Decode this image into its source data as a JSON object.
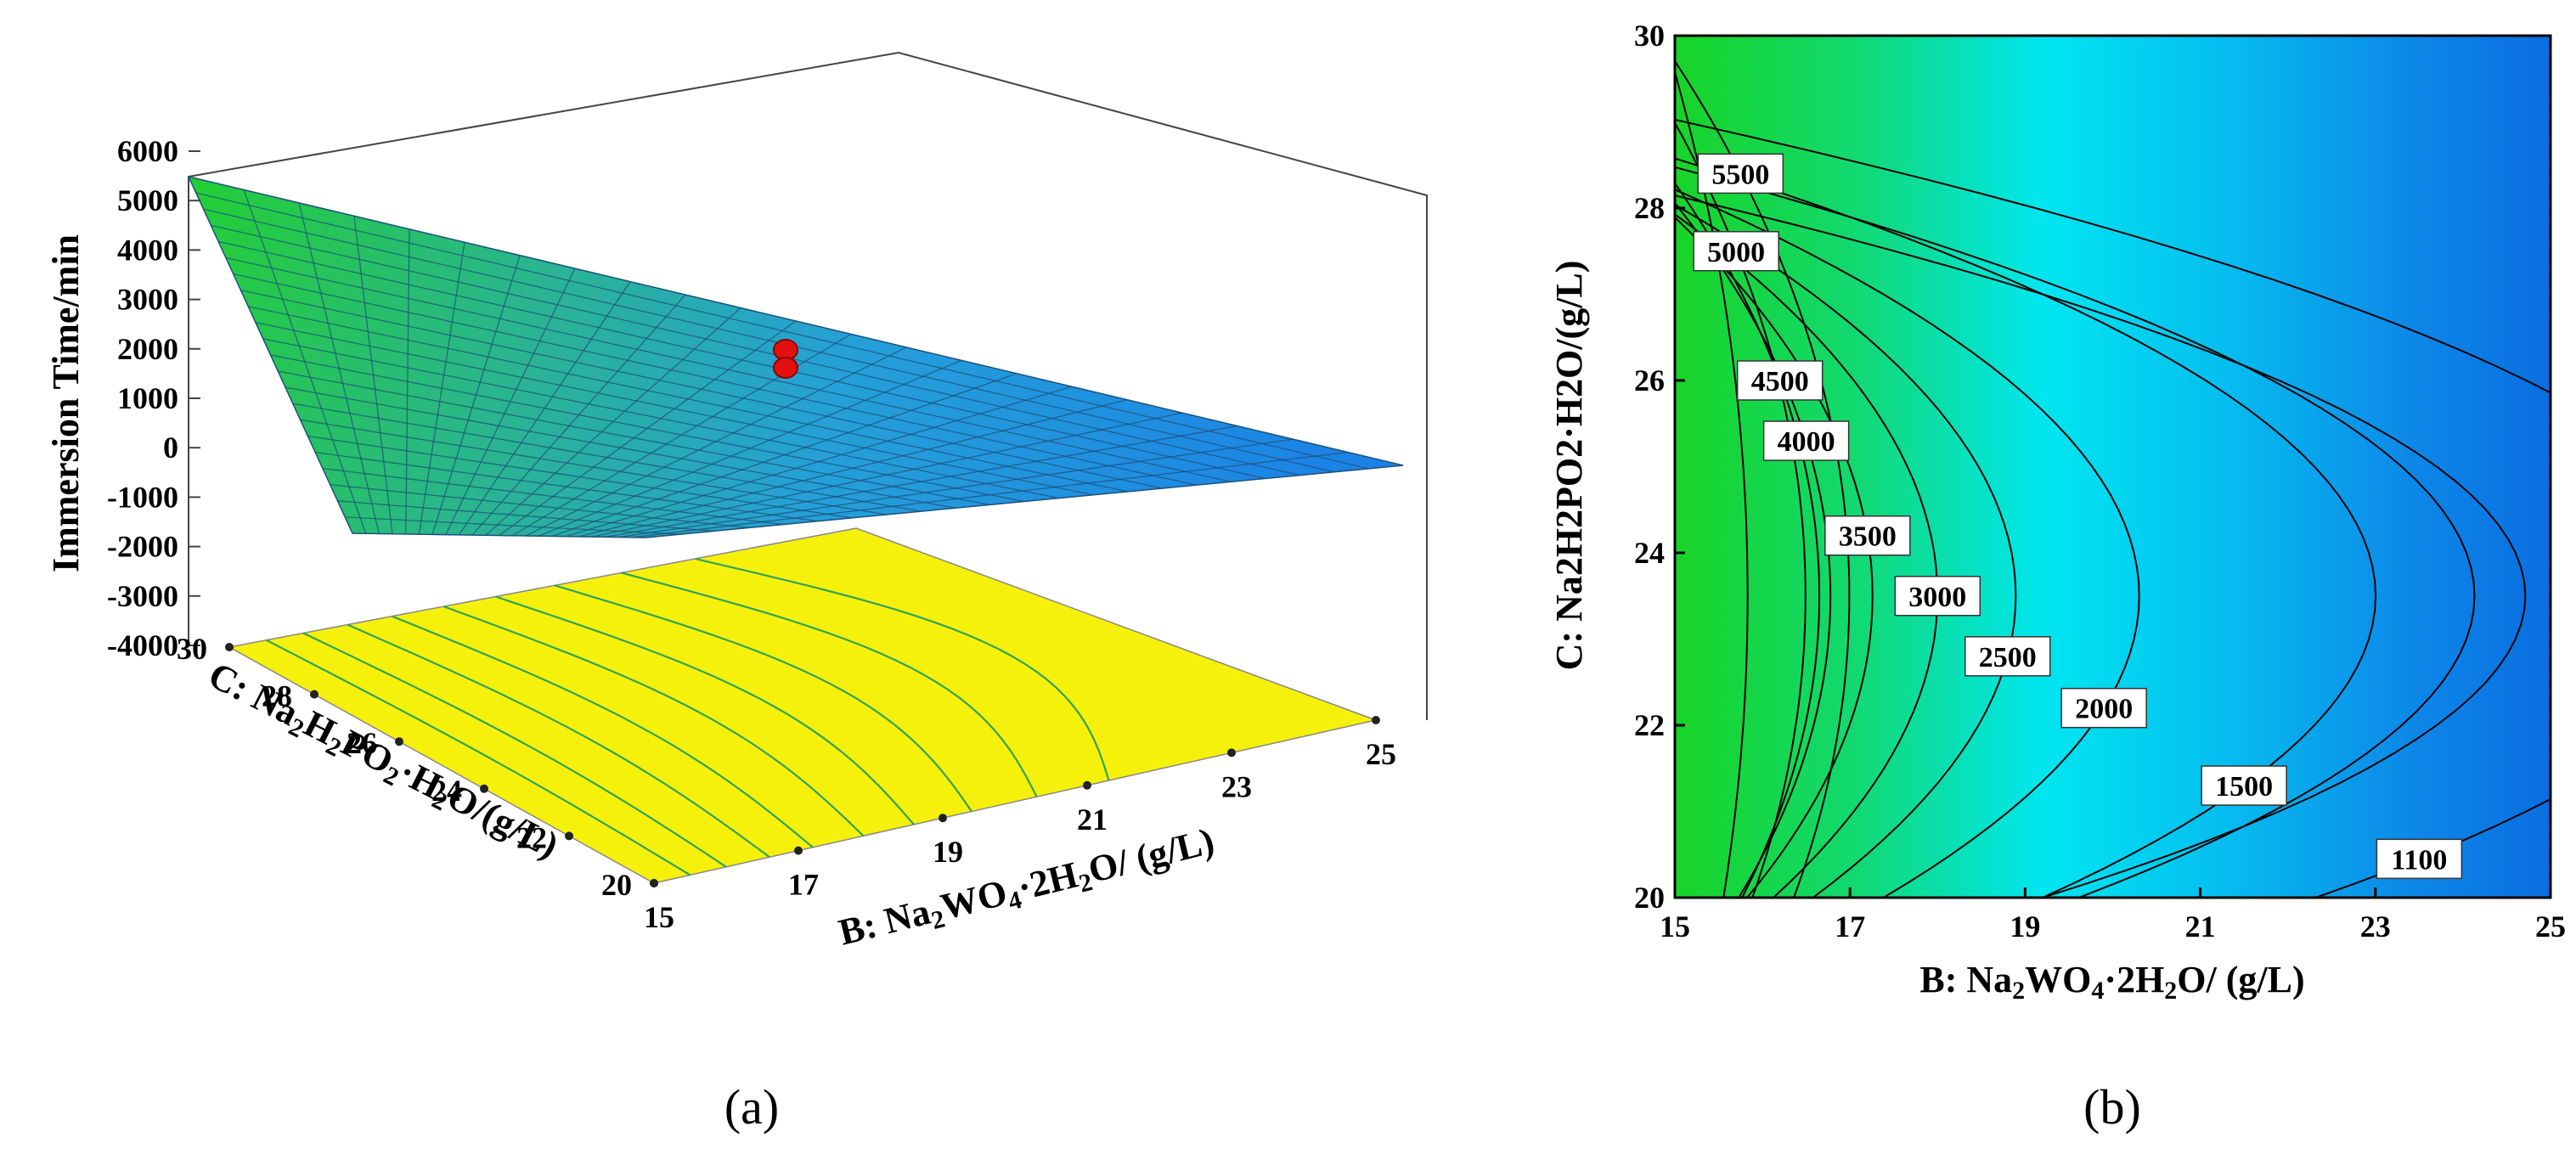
{
  "figure": {
    "panel_a_label": "(a)",
    "panel_b_label": "(b)"
  },
  "chart_data": [
    {
      "type": "surface3d",
      "panel": "(a)",
      "zlabel": "Immersion Time/min",
      "xlabel_prefix": "B: Na",
      "xlabel_sub1": "2",
      "xlabel_mid": "WO",
      "xlabel_sub2": "4",
      "xlabel_suffix": "·2H",
      "xlabel_sub3": "2",
      "xlabel_end": "O/ (g/L)",
      "ylabel_prefix": "C: Na",
      "ylabel_sub1": "2",
      "ylabel_mid1": "H",
      "ylabel_sub2": "2",
      "ylabel_mid2": "PO",
      "ylabel_sub3": "2",
      "ylabel_mid3": "·H",
      "ylabel_sub4": "2",
      "ylabel_end": "O/(g/L)",
      "z_ticks": [
        "6000",
        "5000",
        "4000",
        "3000",
        "2000",
        "1000",
        "0",
        "-1000",
        "-2000",
        "-3000",
        "-4000"
      ],
      "x_ticks": [
        "15",
        "17",
        "19",
        "21",
        "23",
        "25"
      ],
      "y_ticks": [
        "30",
        "28",
        "26",
        "24",
        "22",
        "20"
      ],
      "xlim": [
        15,
        25
      ],
      "ylim": [
        20,
        30
      ],
      "zlim": [
        -4000,
        6000
      ],
      "corner_values": {
        "B15_C30": 5400,
        "B15_C20": -2200,
        "B25_C20": 1000,
        "B25_C30": -800
      },
      "design_point": {
        "B": 20,
        "C": 25,
        "z": 1500
      },
      "colors": {
        "surface_high": "#22cc30",
        "surface_low": "#1a7fe8",
        "floor": "#f5f00a",
        "floor_contour": "#2fa35a",
        "point": "#e01010"
      }
    },
    {
      "type": "contour",
      "panel": "(b)",
      "xlabel_prefix": "B: Na",
      "xlabel_sub1": "2",
      "xlabel_mid": "WO",
      "xlabel_sub2": "4",
      "xlabel_suffix": "·2H",
      "xlabel_sub3": "2",
      "xlabel_end": "O/ (g/L)",
      "ylabel": "C: Na2H2PO2·H2O/(g/L)",
      "x_ticks": [
        "15",
        "17",
        "19",
        "21",
        "23",
        "25"
      ],
      "y_ticks": [
        "30",
        "28",
        "26",
        "24",
        "22",
        "20"
      ],
      "xlim": [
        15,
        25
      ],
      "ylim": [
        20,
        30
      ],
      "contour_levels": [
        {
          "label": "5500",
          "B": 15.75,
          "C": 28.4
        },
        {
          "label": "5000",
          "B": 15.7,
          "C": 27.5
        },
        {
          "label": "4500",
          "B": 16.2,
          "C": 26.0
        },
        {
          "label": "4000",
          "B": 16.5,
          "C": 25.3
        },
        {
          "label": "3500",
          "B": 17.2,
          "C": 24.2
        },
        {
          "label": "3000",
          "B": 18.0,
          "C": 23.5
        },
        {
          "label": "2500",
          "B": 18.8,
          "C": 22.8
        },
        {
          "label": "2000",
          "B": 19.9,
          "C": 22.2
        },
        {
          "label": "1500",
          "B": 21.5,
          "C": 21.3
        },
        {
          "label": "1100",
          "B": 23.5,
          "C": 20.45
        }
      ],
      "colors": {
        "high": "#1ad92a",
        "mid": "#00e0f0",
        "low": "#0a6fe0",
        "lines": "#000000"
      }
    }
  ]
}
